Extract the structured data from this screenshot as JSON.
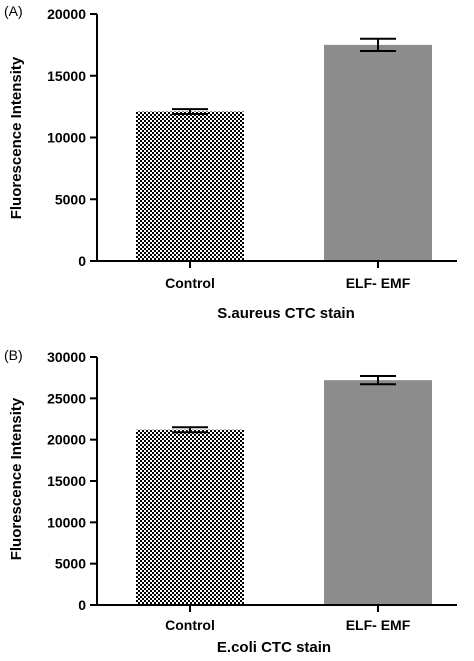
{
  "chart_data": [
    {
      "type": "bar",
      "panel_label": "(A)",
      "categories": [
        "Control",
        "ELF- EMF"
      ],
      "values": [
        12100,
        17500
      ],
      "errors": [
        200,
        500
      ],
      "bar_styles": [
        "checkered",
        "solid"
      ],
      "bar_colors": [
        "#000000",
        "#8c8c8c"
      ],
      "ylabel": "Fluorescence Intensity",
      "xlabel": "S.aureus CTC stain",
      "ylim": [
        0,
        20000
      ],
      "yticks": [
        "0",
        "5000",
        "10000",
        "15000",
        "20000"
      ],
      "grid": false
    },
    {
      "type": "bar",
      "panel_label": "(B)",
      "categories": [
        "Control",
        "ELF- EMF"
      ],
      "values": [
        21200,
        27200
      ],
      "errors": [
        300,
        500
      ],
      "bar_styles": [
        "checkered",
        "solid"
      ],
      "bar_colors": [
        "#000000",
        "#8c8c8c"
      ],
      "ylabel": "Fluorescence Intensity",
      "xlabel": "E.coli CTC stain",
      "ylim": [
        0,
        30000
      ],
      "yticks": [
        "0",
        "5000",
        "10000",
        "15000",
        "20000",
        "25000",
        "30000"
      ],
      "grid": false
    }
  ]
}
